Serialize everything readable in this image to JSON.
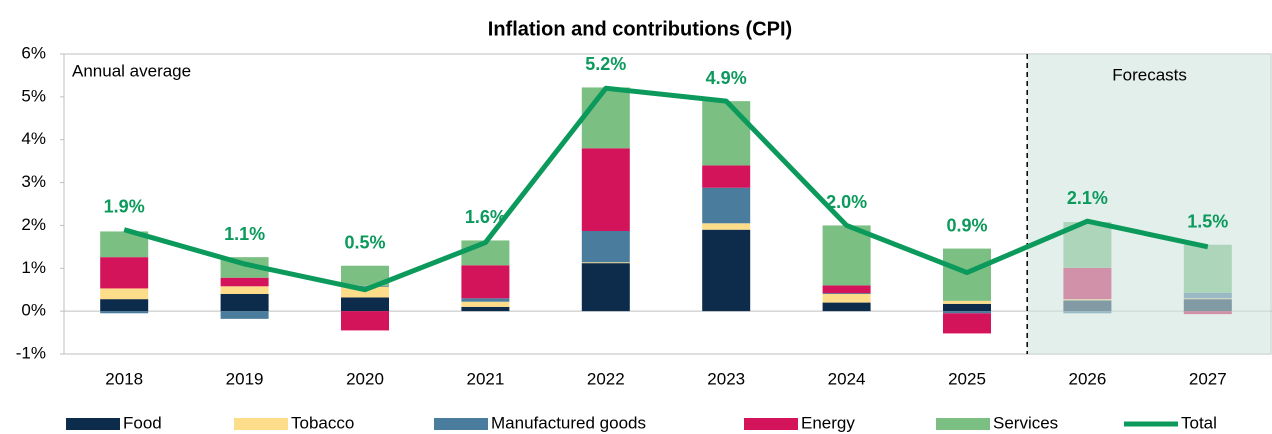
{
  "chart_data": {
    "type": "stacked_bar_line",
    "title": "Inflation and contributions (CPI)",
    "categories": [
      "2018",
      "2019",
      "2020",
      "2021",
      "2022",
      "2023",
      "2024",
      "2025",
      "2026",
      "2027"
    ],
    "series": [
      {
        "name": "Food",
        "color": "#0d2b4b",
        "values": [
          0.28,
          0.4,
          0.32,
          0.1,
          1.12,
          1.9,
          0.2,
          0.17,
          0.25,
          0.28
        ]
      },
      {
        "name": "Tobacco",
        "color": "#fddc8a",
        "values": [
          0.25,
          0.18,
          0.25,
          0.12,
          0.02,
          0.15,
          0.2,
          0.07,
          0.03,
          0.02
        ]
      },
      {
        "name": "Manufactured goods",
        "color": "#4a7c9d",
        "values": [
          -0.05,
          -0.18,
          0.02,
          0.08,
          0.73,
          0.83,
          0.02,
          -0.05,
          -0.05,
          0.13
        ]
      },
      {
        "name": "Energy",
        "color": "#d4145a",
        "values": [
          0.73,
          0.2,
          -0.45,
          0.77,
          1.93,
          0.52,
          0.18,
          -0.47,
          0.73,
          -0.07
        ]
      },
      {
        "name": "Services",
        "color": "#7bbf83",
        "values": [
          0.6,
          0.48,
          0.47,
          0.58,
          1.42,
          1.5,
          1.4,
          1.22,
          1.07,
          1.12
        ]
      },
      {
        "name": "Total",
        "color": "#0b9a5b",
        "type": "line",
        "values": [
          1.9,
          1.1,
          0.5,
          1.6,
          5.2,
          4.9,
          2.0,
          0.9,
          2.1,
          1.5
        ],
        "value_labels": [
          "1.9%",
          "1.1%",
          "0.5%",
          "1.6%",
          "5.2%",
          "4.9%",
          "2.0%",
          "0.9%",
          "2.1%",
          "1.5%"
        ]
      }
    ],
    "ylim": [
      -1,
      6
    ],
    "yticks": [
      {
        "value": -1,
        "label": "-1%"
      },
      {
        "value": 0,
        "label": "0%"
      },
      {
        "value": 1,
        "label": "1%"
      },
      {
        "value": 2,
        "label": "2%"
      },
      {
        "value": 3,
        "label": "3%"
      },
      {
        "value": 4,
        "label": "4%"
      },
      {
        "value": 5,
        "label": "5%"
      },
      {
        "value": 6,
        "label": "6%"
      }
    ],
    "annotations": [
      "Annual average",
      "Forecasts"
    ],
    "forecast_start": "2026",
    "legend": "bottom"
  }
}
